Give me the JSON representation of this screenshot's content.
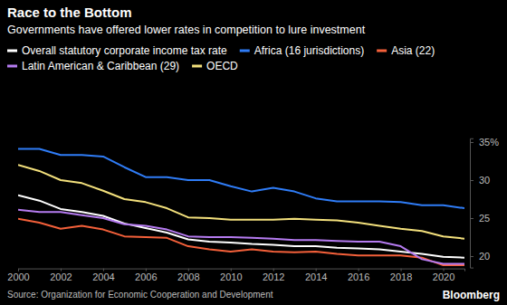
{
  "chart_data": {
    "type": "line",
    "title": "Race to the Bottom",
    "subtitle": "Governments have offered lower rates in competition to lure investment",
    "source": "Source: Organization for Economic Cooperation and Development",
    "logo": "Bloomberg",
    "x": [
      2000,
      2001,
      2002,
      2003,
      2004,
      2005,
      2006,
      2007,
      2008,
      2009,
      2010,
      2011,
      2012,
      2013,
      2014,
      2015,
      2016,
      2017,
      2018,
      2019,
      2020,
      2021
    ],
    "xlim": [
      2000,
      2021
    ],
    "xticks": [
      2000,
      2002,
      2004,
      2006,
      2008,
      2010,
      2012,
      2014,
      2016,
      2018,
      2020
    ],
    "ylim": [
      18.5,
      35.5
    ],
    "yticks": [
      20,
      25,
      30,
      {
        "value": 35,
        "label": "35%"
      }
    ],
    "grid": false,
    "legend": "top left",
    "series": [
      {
        "name": "Overall statutory corporate income tax rate",
        "color": "#ffffff",
        "values": [
          28.0,
          27.3,
          26.2,
          25.8,
          25.3,
          24.3,
          23.7,
          23.1,
          22.2,
          21.9,
          21.8,
          21.6,
          21.5,
          21.3,
          21.3,
          21.1,
          21.0,
          20.9,
          20.6,
          20.3,
          19.9,
          19.8
        ]
      },
      {
        "name": "Africa (16 jurisdictions)",
        "color": "#2f7cf6",
        "values": [
          34.1,
          34.1,
          33.3,
          33.3,
          33.1,
          31.7,
          30.4,
          30.4,
          30.0,
          30.0,
          29.2,
          28.5,
          29.0,
          28.5,
          27.6,
          27.2,
          27.2,
          27.2,
          27.1,
          26.7,
          26.7,
          26.3
        ]
      },
      {
        "name": "Asia (22)",
        "color": "#f4603a",
        "values": [
          24.9,
          24.4,
          23.6,
          24.0,
          23.5,
          22.6,
          22.5,
          22.4,
          21.3,
          20.9,
          20.6,
          20.9,
          20.6,
          20.5,
          20.6,
          20.3,
          20.1,
          20.1,
          20.1,
          19.8,
          18.8,
          18.8
        ]
      },
      {
        "name": "Latin American & Caribbean (29)",
        "color": "#b57bf0",
        "values": [
          26.1,
          25.8,
          25.8,
          25.4,
          25.0,
          24.2,
          24.0,
          23.5,
          22.6,
          22.5,
          22.5,
          22.4,
          22.3,
          22.1,
          22.1,
          22.0,
          21.9,
          21.9,
          21.3,
          19.6,
          19.0,
          19.0
        ]
      },
      {
        "name": "OECD",
        "color": "#f3e07c",
        "values": [
          32.0,
          31.2,
          30.0,
          29.6,
          28.6,
          27.5,
          27.1,
          26.3,
          25.1,
          25.0,
          24.8,
          24.8,
          24.8,
          24.9,
          24.8,
          24.7,
          24.4,
          24.0,
          23.6,
          23.3,
          22.6,
          22.3
        ]
      }
    ]
  }
}
